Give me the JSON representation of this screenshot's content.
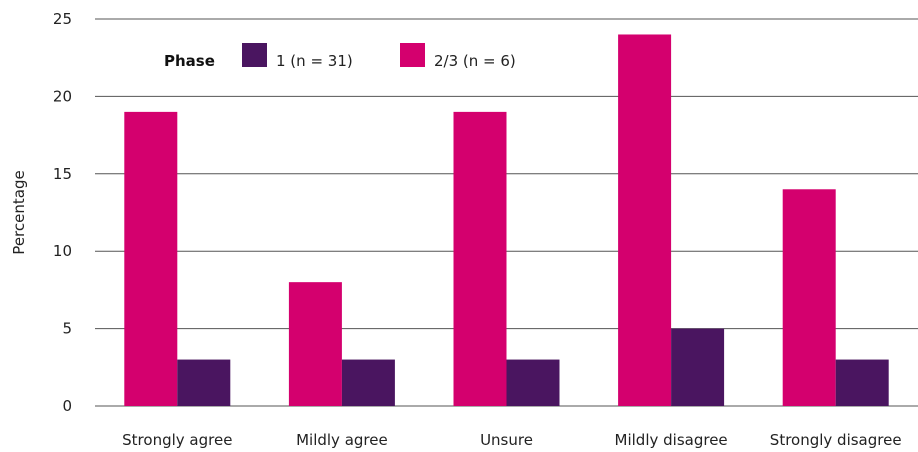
{
  "chart_data": {
    "type": "bar",
    "title": "",
    "xlabel": "",
    "ylabel": "Percentage",
    "ylim": [
      0,
      25
    ],
    "yticks": [
      0,
      5,
      10,
      15,
      20,
      25
    ],
    "grid": true,
    "legend": {
      "title": "Phase",
      "placement": "top-left"
    },
    "categories": [
      "Strongly agree",
      "Mildly agree",
      "Unsure",
      "Mildly disagree",
      "Strongly disagree"
    ],
    "series": [
      {
        "name": "2/3 (n = 6)",
        "color": "#d4006e",
        "values": [
          19,
          8,
          19,
          24,
          14
        ]
      },
      {
        "name": "1 (n = 31)",
        "color": "#4a1560",
        "values": [
          3,
          3,
          3,
          5,
          3
        ]
      }
    ],
    "legend_order": [
      1,
      0
    ]
  }
}
